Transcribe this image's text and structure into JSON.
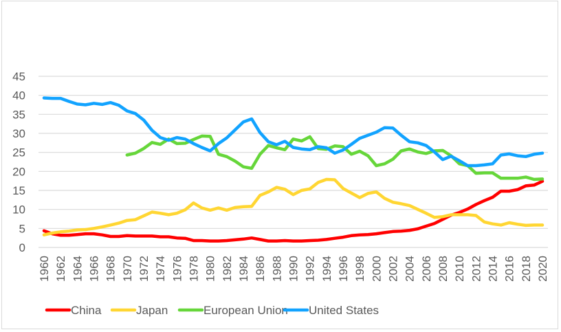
{
  "chart_data": {
    "type": "line",
    "title": "",
    "xlabel": "",
    "ylabel": "",
    "ylim": [
      0,
      45
    ],
    "yticks": [
      0,
      5,
      10,
      15,
      20,
      25,
      30,
      35,
      40,
      45
    ],
    "xlim": [
      1960,
      2020
    ],
    "xtick_labels": [
      "1960",
      "1962",
      "1964",
      "1966",
      "1968",
      "1970",
      "1972",
      "1974",
      "1976",
      "1978",
      "1980",
      "1982",
      "1984",
      "1986",
      "1988",
      "1990",
      "1992",
      "1994",
      "1996",
      "1998",
      "2000",
      "2002",
      "2004",
      "2006",
      "2008",
      "2010",
      "2012",
      "2014",
      "2016",
      "2018",
      "2020"
    ],
    "grid": "horizontal",
    "legend_position": "bottom",
    "x": [
      1960,
      1961,
      1962,
      1963,
      1964,
      1965,
      1966,
      1967,
      1968,
      1969,
      1970,
      1971,
      1972,
      1973,
      1974,
      1975,
      1976,
      1977,
      1978,
      1979,
      1980,
      1981,
      1982,
      1983,
      1984,
      1985,
      1986,
      1987,
      1988,
      1989,
      1990,
      1991,
      1992,
      1993,
      1994,
      1995,
      1996,
      1997,
      1998,
      1999,
      2000,
      2001,
      2002,
      2003,
      2004,
      2005,
      2006,
      2007,
      2008,
      2009,
      2010,
      2011,
      2012,
      2013,
      2014,
      2015,
      2016,
      2017,
      2018,
      2019,
      2020
    ],
    "series": [
      {
        "name": "China",
        "color": "#ff0000",
        "values": [
          4.4,
          3.6,
          3.2,
          3.2,
          3.4,
          3.6,
          3.6,
          3.3,
          2.9,
          2.9,
          3.1,
          3.0,
          3.0,
          3.0,
          2.8,
          2.8,
          2.5,
          2.4,
          1.8,
          1.8,
          1.7,
          1.7,
          1.8,
          2.0,
          2.2,
          2.5,
          2.1,
          1.7,
          1.7,
          1.8,
          1.7,
          1.7,
          1.8,
          1.9,
          2.1,
          2.4,
          2.7,
          3.1,
          3.3,
          3.4,
          3.6,
          3.9,
          4.2,
          4.3,
          4.5,
          4.9,
          5.6,
          6.3,
          7.4,
          8.5,
          9.2,
          10.1,
          11.3,
          12.3,
          13.2,
          14.8,
          14.8,
          15.2,
          16.2,
          16.4,
          17.4
        ]
      },
      {
        "name": "Japan",
        "color": "#ffd633",
        "values": [
          3.3,
          3.8,
          4.1,
          4.3,
          4.6,
          4.7,
          5.0,
          5.4,
          5.9,
          6.4,
          7.1,
          7.3,
          8.3,
          9.3,
          9.0,
          8.6,
          9.0,
          9.9,
          11.7,
          10.4,
          9.8,
          10.4,
          9.8,
          10.5,
          10.7,
          10.8,
          13.7,
          14.6,
          15.8,
          15.3,
          13.9,
          15.0,
          15.4,
          17.1,
          17.9,
          17.8,
          15.5,
          14.3,
          13.1,
          14.2,
          14.6,
          12.9,
          11.9,
          11.5,
          11.0,
          10.0,
          9.0,
          7.9,
          8.1,
          8.6,
          8.6,
          8.6,
          8.4,
          6.7,
          6.2,
          5.9,
          6.5,
          6.1,
          5.8,
          5.9,
          5.9
        ]
      },
      {
        "name": "European Union",
        "color": "#66d63a",
        "values": [
          null,
          null,
          null,
          null,
          null,
          null,
          null,
          null,
          null,
          null,
          24.3,
          24.8,
          26.0,
          27.6,
          27.1,
          28.5,
          27.3,
          27.4,
          28.4,
          29.3,
          29.2,
          24.5,
          23.9,
          22.7,
          21.2,
          20.8,
          24.5,
          26.8,
          26.2,
          25.7,
          28.5,
          28.0,
          29.1,
          26.0,
          25.8,
          26.7,
          26.5,
          24.5,
          25.3,
          24.1,
          21.5,
          22.0,
          23.2,
          25.4,
          25.9,
          25.1,
          24.7,
          25.4,
          25.5,
          24.1,
          22.0,
          21.5,
          19.5,
          19.6,
          19.6,
          18.2,
          18.2,
          18.2,
          18.5,
          17.9,
          18.0
        ]
      },
      {
        "name": "United States",
        "color": "#12a3ff",
        "values": [
          39.3,
          39.2,
          39.2,
          38.4,
          37.7,
          37.5,
          37.9,
          37.6,
          38.1,
          37.4,
          35.9,
          35.2,
          33.5,
          30.8,
          28.9,
          28.2,
          28.9,
          28.5,
          27.3,
          26.3,
          25.4,
          27.3,
          28.8,
          30.9,
          33.0,
          33.8,
          30.2,
          27.8,
          27.0,
          27.9,
          26.3,
          25.9,
          25.7,
          26.5,
          26.2,
          24.8,
          25.6,
          27.1,
          28.7,
          29.5,
          30.3,
          31.5,
          31.4,
          29.5,
          27.8,
          27.5,
          26.8,
          25.1,
          23.1,
          24.0,
          22.8,
          21.5,
          21.5,
          21.7,
          22.0,
          24.3,
          24.6,
          24.1,
          23.9,
          24.5,
          24.8
        ]
      }
    ]
  }
}
